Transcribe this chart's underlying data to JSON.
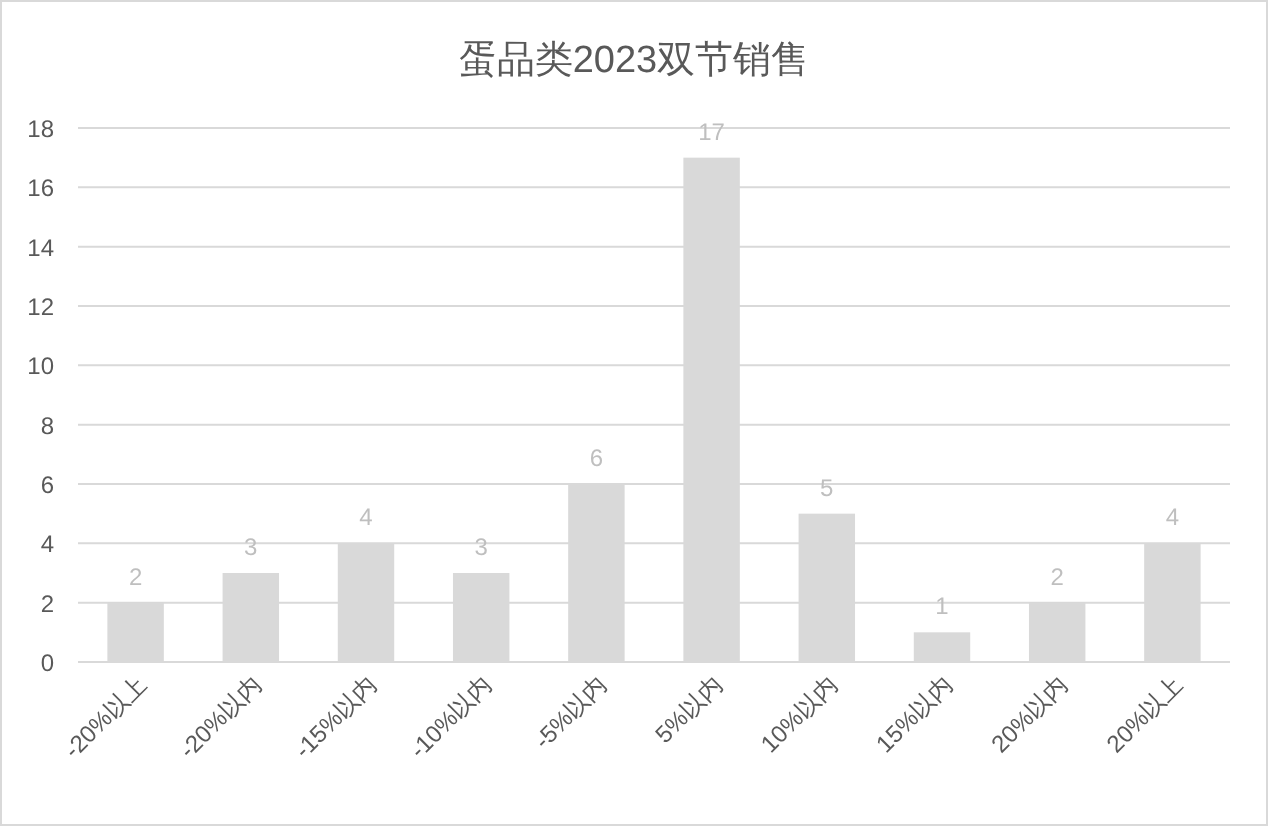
{
  "chart_data": {
    "type": "bar",
    "title": "蛋品类2023双节销售",
    "categories": [
      "-20%以上",
      "-20%以内",
      "-15%以内",
      "-10%以内",
      "-5%以内",
      "5%以内",
      "10%以内",
      "15%以内",
      "20%以内",
      "20%以上"
    ],
    "values": [
      2,
      3,
      4,
      3,
      6,
      17,
      5,
      1,
      2,
      4
    ],
    "color": "#d9d9d9",
    "ylim": [
      0,
      18
    ],
    "yticks": [
      0,
      2,
      4,
      6,
      8,
      10,
      12,
      14,
      16,
      18
    ],
    "grid": "y",
    "data_labels": true
  }
}
